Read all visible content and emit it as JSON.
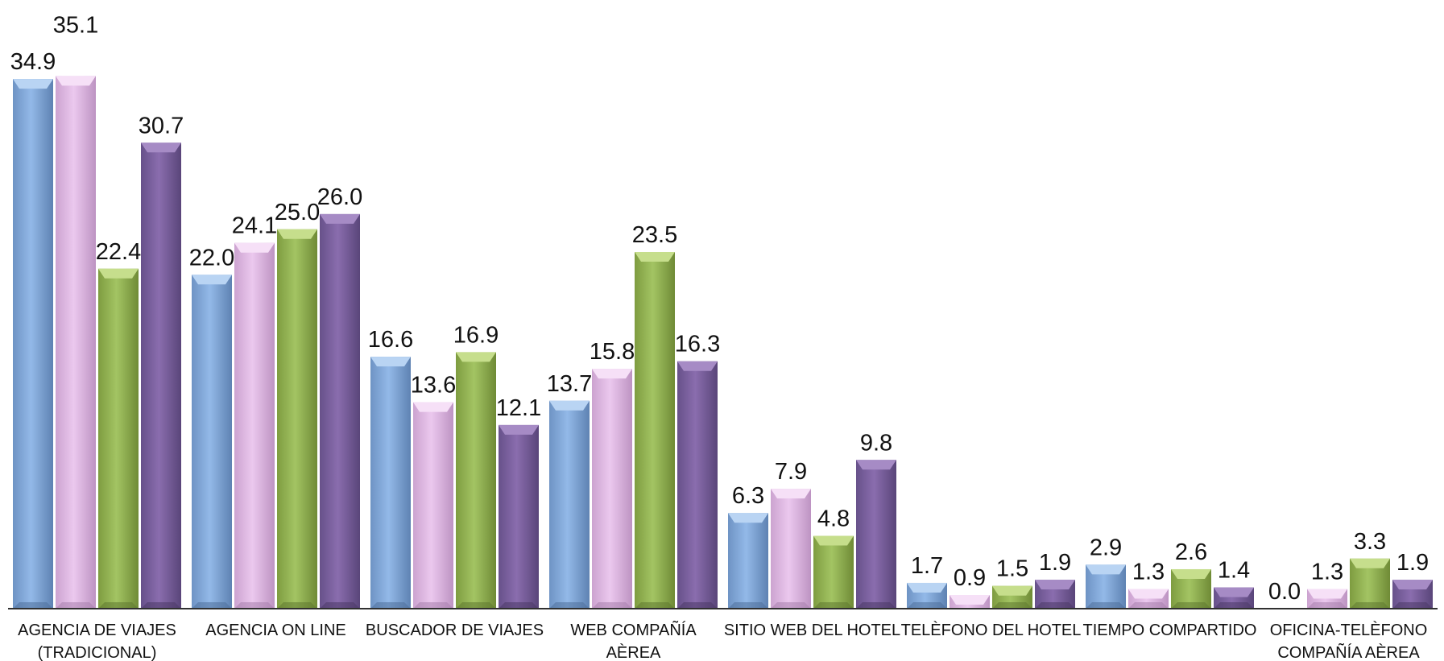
{
  "chart_data": {
    "type": "bar",
    "categories": [
      "AGENCIA DE VIAJES (TRADICIONAL)",
      "AGENCIA ON LINE",
      "BUSCADOR DE VIAJES",
      "WEB COMPAÑÍA AÈREA",
      "SITIO WEB DEL HOTEL",
      "TELÈFONO DEL HOTEL",
      "TIEMPO COMPARTIDO",
      "OFICINA-TELÈFONO COMPAÑÍA AÈREA"
    ],
    "category_lines": [
      [
        "AGENCIA DE VIAJES",
        "(TRADICIONAL)"
      ],
      [
        "AGENCIA ON LINE"
      ],
      [
        "BUSCADOR DE VIAJES"
      ],
      [
        "WEB COMPAÑÍA",
        "AÈREA"
      ],
      [
        "SITIO WEB DEL HOTEL"
      ],
      [
        "TELÈFONO DEL HOTEL"
      ],
      [
        "TIEMPO COMPARTIDO"
      ],
      [
        "OFICINA-TELÈFONO",
        "COMPAÑÍA AÈREA"
      ]
    ],
    "series": [
      {
        "values": [
          34.9,
          22.0,
          16.6,
          13.7,
          6.3,
          1.7,
          2.9,
          0.0
        ]
      },
      {
        "values": [
          35.1,
          24.1,
          13.6,
          15.8,
          7.9,
          0.9,
          1.3,
          1.3
        ]
      },
      {
        "values": [
          22.4,
          25.0,
          16.9,
          23.5,
          4.8,
          1.5,
          2.6,
          3.3
        ]
      },
      {
        "values": [
          30.7,
          26.0,
          12.1,
          16.3,
          9.8,
          1.9,
          1.4,
          1.9
        ]
      }
    ],
    "series_colors": [
      "#8DB4E2",
      "#E6C0E9",
      "#9BBB59",
      "#8064A2"
    ],
    "value_format_decimals": 1,
    "ylim": [
      0,
      37
    ],
    "grid": false,
    "legend": "none"
  }
}
